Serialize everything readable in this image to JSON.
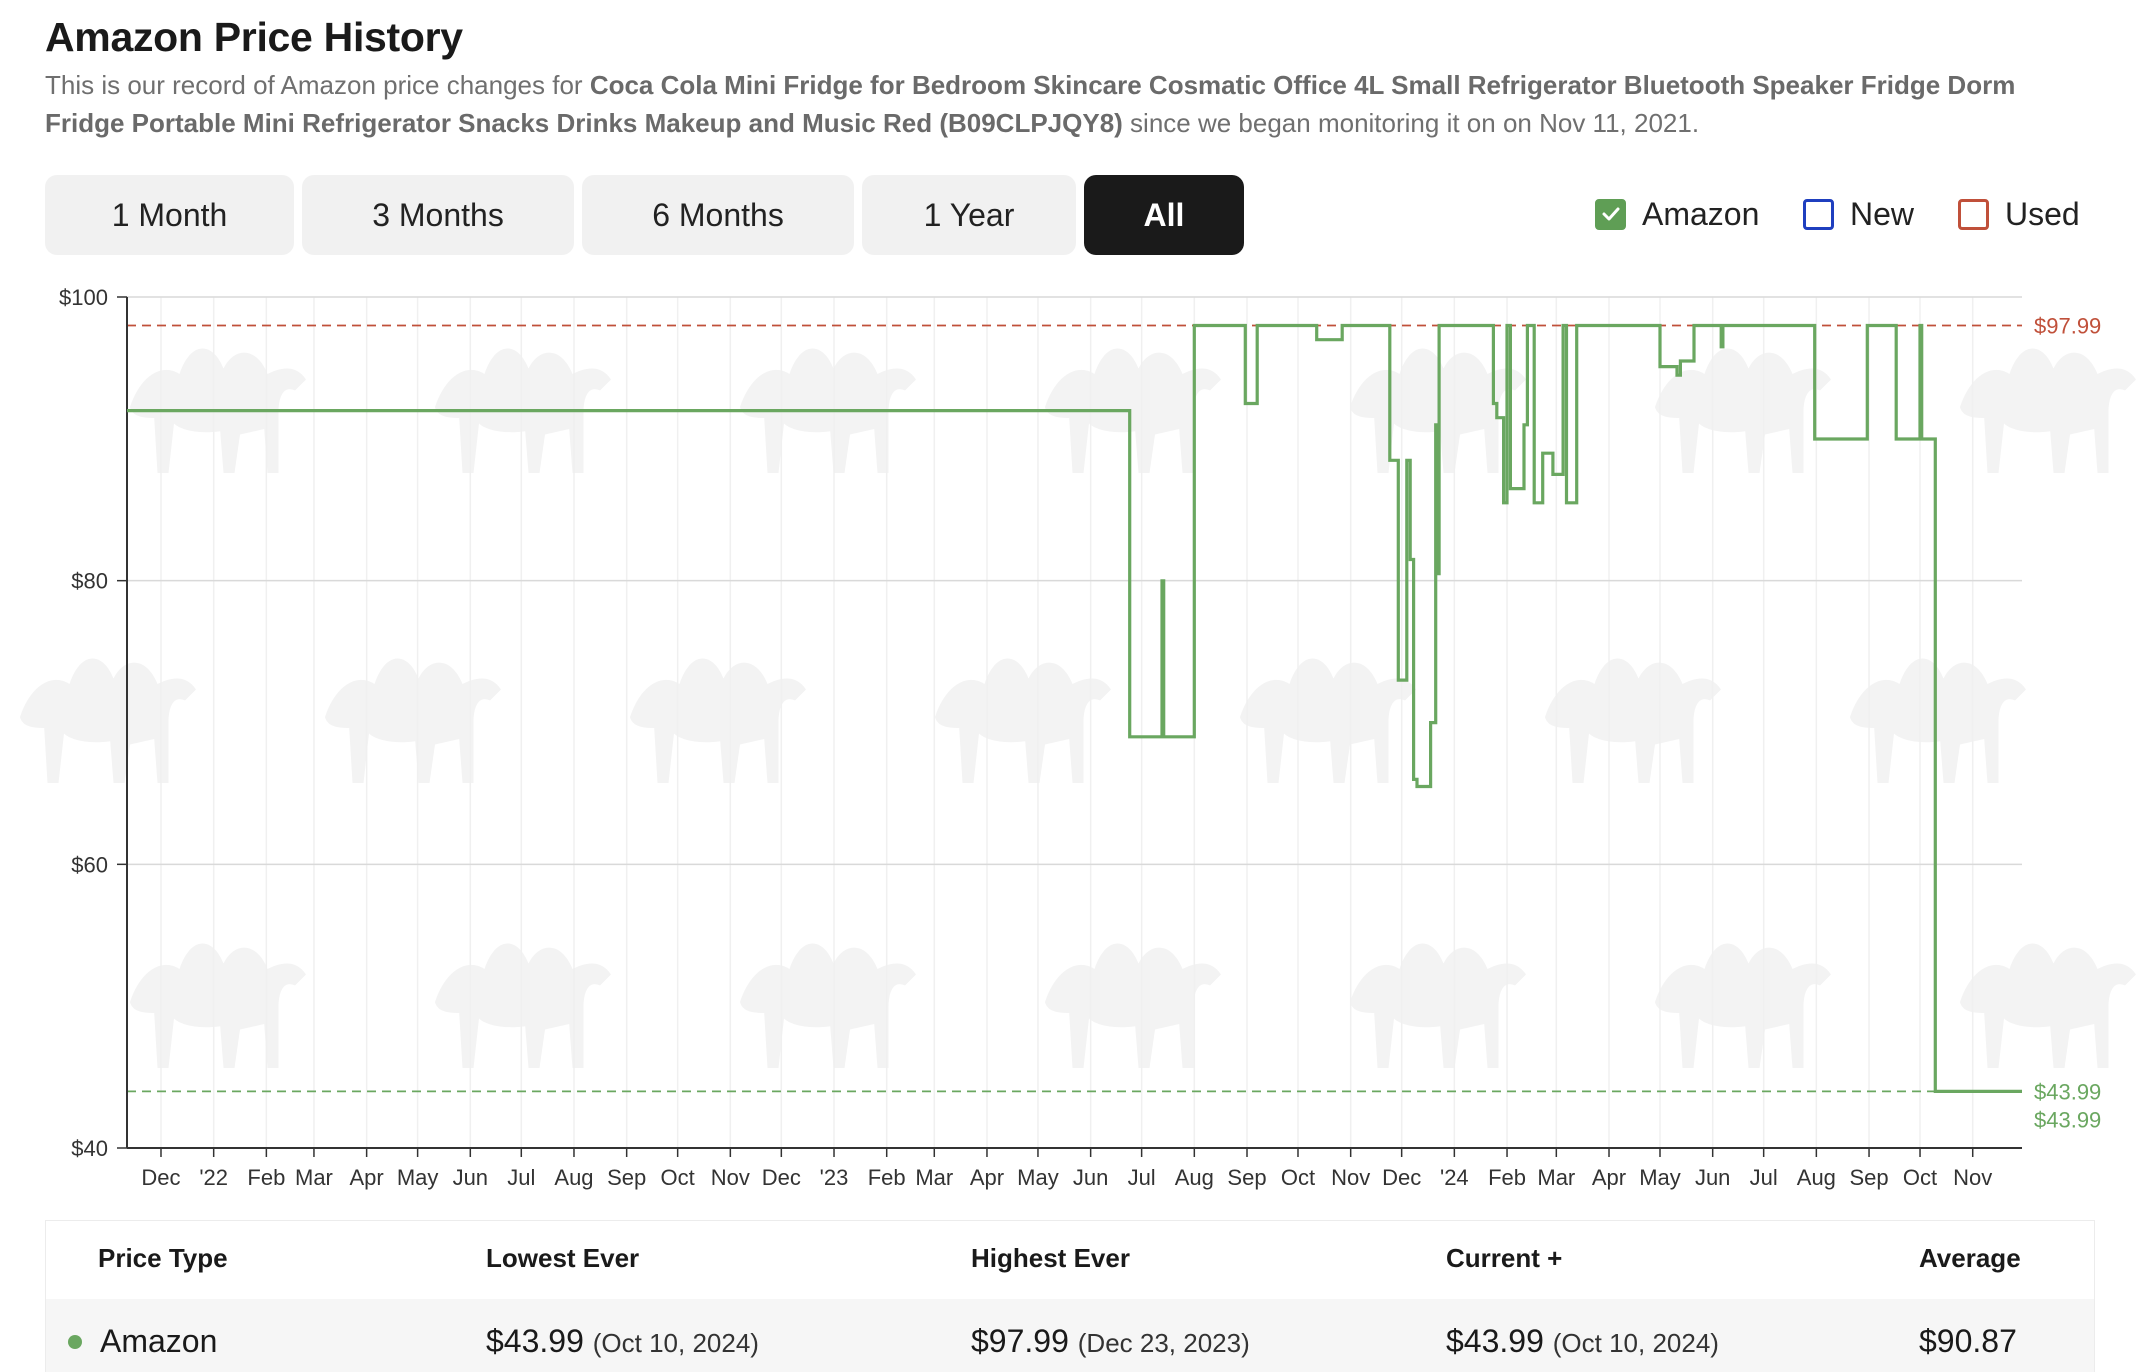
{
  "header": {
    "title": "Amazon Price History",
    "intro_prefix": "This is our record of Amazon price changes for ",
    "product": "Coca Cola Mini Fridge for Bedroom Skincare Cosmatic Office 4L Small Refrigerator Bluetooth Speaker Fridge Dorm Fridge Portable Mini Refrigerator Snacks Drinks Makeup and Music Red (B09CLPJQY8)",
    "intro_suffix": " since we began monitoring it on on Nov 11, 2021."
  },
  "ranges": [
    "1 Month",
    "3 Months",
    "6 Months",
    "1 Year",
    "All"
  ],
  "active_range": "All",
  "legend": [
    {
      "label": "Amazon",
      "color": "#5f9e55",
      "checked": true
    },
    {
      "label": "New",
      "color": "#1f3fbf",
      "checked": false
    },
    {
      "label": "Used",
      "color": "#c0503a",
      "checked": false
    }
  ],
  "chart_data": {
    "type": "line",
    "step": true,
    "title": "",
    "xlabel": "",
    "ylabel": "",
    "ylim": [
      40,
      100
    ],
    "y_ticks": [
      "$40",
      "$60",
      "$80",
      "$100"
    ],
    "x_start": "2021-11-11",
    "x_end": "2024-11-30",
    "x_ticks": [
      {
        "label": "Dec",
        "date": "2021-12-01"
      },
      {
        "label": "'22",
        "date": "2022-01-01"
      },
      {
        "label": "Feb",
        "date": "2022-02-01"
      },
      {
        "label": "Mar",
        "date": "2022-03-01"
      },
      {
        "label": "Apr",
        "date": "2022-04-01"
      },
      {
        "label": "May",
        "date": "2022-05-01"
      },
      {
        "label": "Jun",
        "date": "2022-06-01"
      },
      {
        "label": "Jul",
        "date": "2022-07-01"
      },
      {
        "label": "Aug",
        "date": "2022-08-01"
      },
      {
        "label": "Sep",
        "date": "2022-09-01"
      },
      {
        "label": "Oct",
        "date": "2022-10-01"
      },
      {
        "label": "Nov",
        "date": "2022-11-01"
      },
      {
        "label": "Dec",
        "date": "2022-12-01"
      },
      {
        "label": "'23",
        "date": "2023-01-01"
      },
      {
        "label": "Feb",
        "date": "2023-02-01"
      },
      {
        "label": "Mar",
        "date": "2023-03-01"
      },
      {
        "label": "Apr",
        "date": "2023-04-01"
      },
      {
        "label": "May",
        "date": "2023-05-01"
      },
      {
        "label": "Jun",
        "date": "2023-06-01"
      },
      {
        "label": "Jul",
        "date": "2023-07-01"
      },
      {
        "label": "Aug",
        "date": "2023-08-01"
      },
      {
        "label": "Sep",
        "date": "2023-09-01"
      },
      {
        "label": "Oct",
        "date": "2023-10-01"
      },
      {
        "label": "Nov",
        "date": "2023-11-01"
      },
      {
        "label": "Dec",
        "date": "2023-12-01"
      },
      {
        "label": "'24",
        "date": "2024-01-01"
      },
      {
        "label": "Feb",
        "date": "2024-02-01"
      },
      {
        "label": "Mar",
        "date": "2024-03-01"
      },
      {
        "label": "Apr",
        "date": "2024-04-01"
      },
      {
        "label": "May",
        "date": "2024-05-01"
      },
      {
        "label": "Jun",
        "date": "2024-06-01"
      },
      {
        "label": "Jul",
        "date": "2024-07-01"
      },
      {
        "label": "Aug",
        "date": "2024-08-01"
      },
      {
        "label": "Sep",
        "date": "2024-09-01"
      },
      {
        "label": "Oct",
        "date": "2024-10-01"
      },
      {
        "label": "Nov",
        "date": "2024-11-01"
      }
    ],
    "reference_lines": [
      {
        "label": "$97.99",
        "value": 97.99,
        "color": "#c0503a"
      },
      {
        "label": "$43.99",
        "value": 43.99,
        "color": "#6aa760"
      }
    ],
    "extra_labels": [
      "$43.99"
    ],
    "grid": true,
    "series": [
      {
        "name": "Amazon",
        "color": "#6aa760",
        "points": [
          [
            "2021-11-11",
            91.99
          ],
          [
            "2023-06-24",
            68.99
          ],
          [
            "2023-07-13",
            79.99
          ],
          [
            "2023-07-14",
            68.99
          ],
          [
            "2023-08-01",
            97.99
          ],
          [
            "2023-08-31",
            92.49
          ],
          [
            "2023-09-07",
            97.99
          ],
          [
            "2023-10-12",
            96.99
          ],
          [
            "2023-10-27",
            97.99
          ],
          [
            "2023-11-24",
            88.49
          ],
          [
            "2023-11-29",
            72.99
          ],
          [
            "2023-12-04",
            88.49
          ],
          [
            "2023-12-06",
            81.49
          ],
          [
            "2023-12-08",
            65.99
          ],
          [
            "2023-12-10",
            65.49
          ],
          [
            "2023-12-18",
            69.99
          ],
          [
            "2023-12-21",
            90.99
          ],
          [
            "2023-12-22",
            80.49
          ],
          [
            "2023-12-23",
            97.99
          ],
          [
            "2024-01-24",
            92.49
          ],
          [
            "2024-01-26",
            91.49
          ],
          [
            "2024-01-30",
            85.49
          ],
          [
            "2024-02-01",
            97.99
          ],
          [
            "2024-02-03",
            86.49
          ],
          [
            "2024-02-11",
            90.99
          ],
          [
            "2024-02-13",
            97.99
          ],
          [
            "2024-02-17",
            85.49
          ],
          [
            "2024-02-22",
            88.99
          ],
          [
            "2024-02-28",
            87.49
          ],
          [
            "2024-03-05",
            97.99
          ],
          [
            "2024-03-07",
            85.49
          ],
          [
            "2024-03-13",
            97.99
          ],
          [
            "2024-05-01",
            95.09
          ],
          [
            "2024-05-11",
            94.49
          ],
          [
            "2024-05-13",
            95.49
          ],
          [
            "2024-05-21",
            97.99
          ],
          [
            "2024-06-06",
            96.49
          ],
          [
            "2024-06-07",
            97.99
          ],
          [
            "2024-07-31",
            89.99
          ],
          [
            "2024-08-31",
            97.99
          ],
          [
            "2024-09-17",
            89.99
          ],
          [
            "2024-10-01",
            97.99
          ],
          [
            "2024-10-02",
            89.99
          ],
          [
            "2024-10-10",
            43.99
          ],
          [
            "2024-11-30",
            43.99
          ]
        ]
      }
    ]
  },
  "table": {
    "headers": [
      "Price Type",
      "Lowest Ever",
      "Highest Ever",
      "Current +",
      "Average"
    ],
    "rows": [
      {
        "type": "Amazon",
        "lowest": "$43.99",
        "lowest_date": "(Oct 10, 2024)",
        "highest": "$97.99",
        "highest_date": "(Dec 23, 2023)",
        "current": "$43.99",
        "current_date": "(Oct 10, 2024)",
        "average": "$90.87"
      }
    ]
  }
}
